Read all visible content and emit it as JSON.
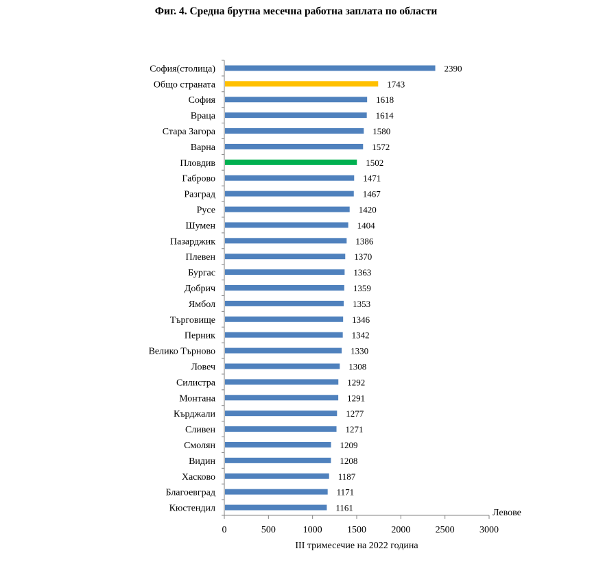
{
  "chart_data": {
    "type": "bar",
    "orientation": "horizontal",
    "title": "Фиг. 4. Средна брутна месечна работна заплата по области",
    "xlabel": "III тримесечие на 2022  година",
    "unit_label": "Левове",
    "xlim": [
      0,
      3000
    ],
    "xticks": [
      0,
      500,
      1000,
      1500,
      2000,
      2500,
      3000
    ],
    "grid": false,
    "colors": {
      "default": "#4f81bd",
      "national": "#ffc000",
      "plovdiv": "#00b050"
    },
    "categories": [
      "София(столица)",
      "Общо страната",
      "София",
      "Враца",
      "Стара Загора",
      "Варна",
      "Пловдив",
      "Габрово",
      "Разград",
      "Русе",
      "Шумен",
      "Пазарджик",
      "Плевен",
      "Бургас",
      "Добрич",
      "Ямбол",
      "Търговище",
      "Перник",
      "Велико Търново",
      "Ловеч",
      "Силистра",
      "Монтана",
      "Кърджали",
      "Сливен",
      "Смолян",
      "Видин",
      "Хасково",
      "Благоевград",
      "Кюстендил"
    ],
    "values": [
      2390,
      1743,
      1618,
      1614,
      1580,
      1572,
      1502,
      1471,
      1467,
      1420,
      1404,
      1386,
      1370,
      1363,
      1359,
      1353,
      1346,
      1342,
      1330,
      1308,
      1292,
      1291,
      1277,
      1271,
      1209,
      1208,
      1187,
      1171,
      1161
    ],
    "highlight": {
      "Общо страната": "national",
      "Пловдив": "plovdiv"
    }
  }
}
